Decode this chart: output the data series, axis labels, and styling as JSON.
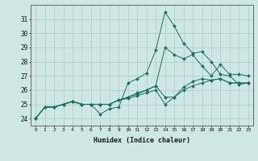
{
  "xlabel": "Humidex (Indice chaleur)",
  "bg_color": "#cde8e4",
  "grid_color": "#b0c8c4",
  "line_color": "#1a6e64",
  "xlim": [
    -0.5,
    23.5
  ],
  "ylim": [
    23.5,
    32.0
  ],
  "yticks": [
    24,
    25,
    26,
    27,
    28,
    29,
    30,
    31
  ],
  "xticks": [
    0,
    1,
    2,
    3,
    4,
    5,
    6,
    7,
    8,
    9,
    10,
    11,
    12,
    13,
    14,
    15,
    16,
    17,
    18,
    19,
    20,
    21,
    22,
    23
  ],
  "series": [
    [
      24.0,
      24.8,
      24.8,
      25.0,
      25.2,
      25.0,
      25.0,
      24.3,
      24.7,
      24.8,
      26.5,
      26.8,
      27.2,
      28.8,
      31.5,
      30.5,
      29.3,
      28.6,
      28.7,
      28.0,
      27.1,
      27.0,
      26.4,
      26.5
    ],
    [
      24.0,
      24.8,
      24.8,
      25.0,
      25.2,
      25.0,
      25.0,
      25.0,
      25.0,
      25.3,
      25.5,
      25.7,
      26.0,
      26.3,
      29.0,
      28.5,
      28.2,
      28.5,
      27.7,
      27.0,
      27.8,
      27.1,
      27.1,
      27.0
    ],
    [
      24.0,
      24.8,
      24.8,
      25.0,
      25.2,
      25.0,
      25.0,
      25.0,
      25.0,
      25.3,
      25.5,
      25.8,
      26.0,
      26.3,
      25.5,
      25.5,
      26.2,
      26.6,
      26.8,
      26.7,
      26.8,
      26.5,
      26.5,
      26.5
    ],
    [
      24.0,
      24.8,
      24.8,
      25.0,
      25.2,
      25.0,
      25.0,
      25.0,
      25.0,
      25.3,
      25.4,
      25.6,
      25.8,
      26.0,
      25.0,
      25.5,
      26.0,
      26.3,
      26.5,
      26.7,
      26.8,
      26.5,
      26.5,
      26.5
    ]
  ]
}
